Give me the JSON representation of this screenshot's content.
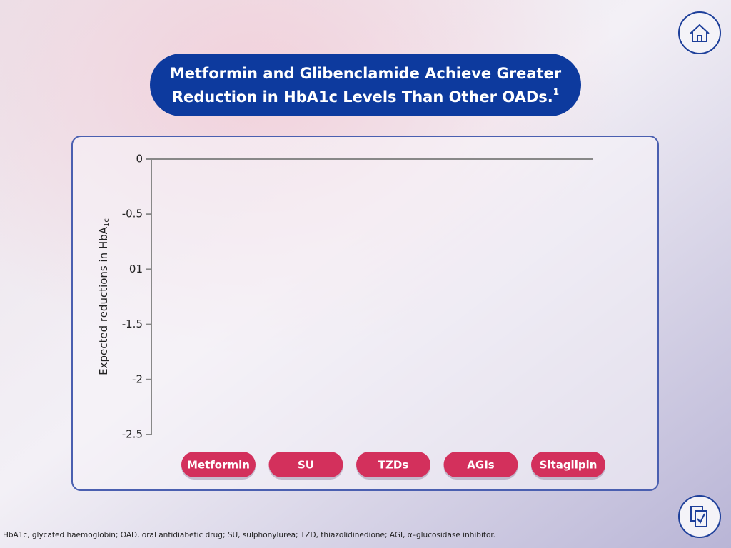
{
  "chart_data": {
    "type": "bar",
    "title": "Metformin and Glibenclamide Achieve Greater Reduction in HbA1c Levels Than Other OADs.",
    "title_superscript": "1",
    "y_label": "Expected reductions in HbA",
    "y_label_subscript": "1c",
    "categories": [
      "Metformin",
      "SU",
      "TZDs",
      "AGIs",
      "Sitaglipin"
    ],
    "ylim": [
      -2.5,
      0
    ],
    "yticks": [
      0,
      -0.5,
      {
        "value": -1,
        "label": "01"
      },
      -1.5,
      -2,
      -2.5
    ]
  },
  "footnote": "HbA1c, glycated haemoglobin; OAD, oral antidiabetic drug; SU, sulphonylurea; TZD, thiazolidinedione; AGI, α–glucosidase inhibitor."
}
